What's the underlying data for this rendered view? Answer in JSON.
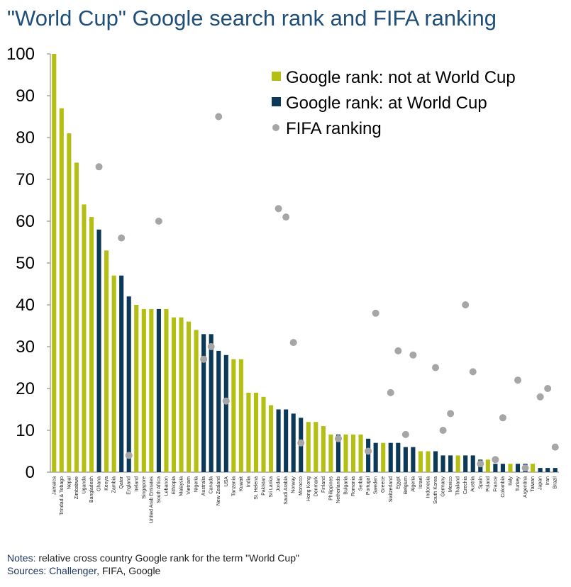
{
  "title": "\"World Cup\" Google search rank and FIFA ranking",
  "notes": {
    "notes_label": "Notes:",
    "notes_text": " relative cross country Google rank for the term \"World Cup\"",
    "sources_label": "Sources: Challenger",
    "sources_text": ", FIFA, Google"
  },
  "chart_data": {
    "type": "bar",
    "ylim": [
      0,
      100
    ],
    "yticks": [
      0,
      10,
      20,
      30,
      40,
      50,
      60,
      70,
      80,
      90,
      100
    ],
    "legend_position": "top-right",
    "grid": false,
    "colors": {
      "not_at_world_cup": "#b4bf14",
      "at_world_cup": "#0c3957",
      "fifa": "#a6a6a6"
    },
    "legend": [
      {
        "key": "not_at_world_cup",
        "label": "Google rank: not at World Cup",
        "marker": "square"
      },
      {
        "key": "at_world_cup",
        "label": "Google rank: at World Cup",
        "marker": "square"
      },
      {
        "key": "fifa",
        "label": "FIFA ranking",
        "marker": "circle"
      }
    ],
    "categories": [
      {
        "name": "Jamaica",
        "google": 100,
        "at_wc": false,
        "fifa": null
      },
      {
        "name": "Trindad & Tobago",
        "google": 87,
        "at_wc": false,
        "fifa": null
      },
      {
        "name": "Nepal",
        "google": 81,
        "at_wc": false,
        "fifa": null
      },
      {
        "name": "Zimbabwe",
        "google": 74,
        "at_wc": false,
        "fifa": null
      },
      {
        "name": "Uganda",
        "google": 64,
        "at_wc": false,
        "fifa": null
      },
      {
        "name": "Bangladesh",
        "google": 61,
        "at_wc": false,
        "fifa": null
      },
      {
        "name": "Ghana",
        "google": 58,
        "at_wc": true,
        "fifa": 73
      },
      {
        "name": "Kenya",
        "google": 53,
        "at_wc": false,
        "fifa": null
      },
      {
        "name": "Zambia",
        "google": 47,
        "at_wc": false,
        "fifa": null
      },
      {
        "name": "Qatar",
        "google": 47,
        "at_wc": true,
        "fifa": 56
      },
      {
        "name": "England",
        "google": 42,
        "at_wc": true,
        "fifa": 4
      },
      {
        "name": "Ireland",
        "google": 40,
        "at_wc": false,
        "fifa": null
      },
      {
        "name": "Singapore",
        "google": 39,
        "at_wc": false,
        "fifa": null
      },
      {
        "name": "United Arab Emirates",
        "google": 39,
        "at_wc": false,
        "fifa": null
      },
      {
        "name": "South Africa",
        "google": 39,
        "at_wc": true,
        "fifa": 60
      },
      {
        "name": "Lebanon",
        "google": 39,
        "at_wc": false,
        "fifa": null
      },
      {
        "name": "Ethiopia",
        "google": 37,
        "at_wc": false,
        "fifa": null
      },
      {
        "name": "Malaysia",
        "google": 37,
        "at_wc": false,
        "fifa": null
      },
      {
        "name": "Vietnam",
        "google": 36,
        "at_wc": false,
        "fifa": null
      },
      {
        "name": "Nigeria",
        "google": 34,
        "at_wc": false,
        "fifa": null
      },
      {
        "name": "Australia",
        "google": 33,
        "at_wc": true,
        "fifa": 27
      },
      {
        "name": "Canada",
        "google": 33,
        "at_wc": true,
        "fifa": 30
      },
      {
        "name": "New Zealand",
        "google": 29,
        "at_wc": true,
        "fifa": 85
      },
      {
        "name": "USA",
        "google": 28,
        "at_wc": true,
        "fifa": 17
      },
      {
        "name": "Tanzania",
        "google": 27,
        "at_wc": false,
        "fifa": null
      },
      {
        "name": "Kuwait",
        "google": 27,
        "at_wc": false,
        "fifa": null
      },
      {
        "name": "India",
        "google": 19,
        "at_wc": false,
        "fifa": null
      },
      {
        "name": "St. Helena",
        "google": 19,
        "at_wc": false,
        "fifa": null
      },
      {
        "name": "Pakistan",
        "google": 18,
        "at_wc": false,
        "fifa": null
      },
      {
        "name": "Sri Lanka",
        "google": 16,
        "at_wc": false,
        "fifa": null
      },
      {
        "name": "Jordan",
        "google": 15,
        "at_wc": true,
        "fifa": 63
      },
      {
        "name": "Saudi Arabia",
        "google": 15,
        "at_wc": true,
        "fifa": 61
      },
      {
        "name": "Norway",
        "google": 14,
        "at_wc": true,
        "fifa": 31
      },
      {
        "name": "Morocco",
        "google": 13,
        "at_wc": true,
        "fifa": 7
      },
      {
        "name": "Hong Kong",
        "google": 12,
        "at_wc": false,
        "fifa": null
      },
      {
        "name": "Denmark",
        "google": 12,
        "at_wc": false,
        "fifa": null
      },
      {
        "name": "Finland",
        "google": 11,
        "at_wc": false,
        "fifa": null
      },
      {
        "name": "Philippines",
        "google": 9,
        "at_wc": false,
        "fifa": null
      },
      {
        "name": "Netherlands",
        "google": 9,
        "at_wc": true,
        "fifa": 8
      },
      {
        "name": "Bulgaria",
        "google": 9,
        "at_wc": false,
        "fifa": null
      },
      {
        "name": "Romania",
        "google": 9,
        "at_wc": false,
        "fifa": null
      },
      {
        "name": "Serbia",
        "google": 9,
        "at_wc": false,
        "fifa": null
      },
      {
        "name": "Portugal",
        "google": 8,
        "at_wc": true,
        "fifa": 5
      },
      {
        "name": "Sweden",
        "google": 7,
        "at_wc": true,
        "fifa": 38
      },
      {
        "name": "Greece",
        "google": 7,
        "at_wc": false,
        "fifa": null
      },
      {
        "name": "Switzerland",
        "google": 7,
        "at_wc": true,
        "fifa": 19
      },
      {
        "name": "Egypt",
        "google": 7,
        "at_wc": true,
        "fifa": 29
      },
      {
        "name": "Belgium",
        "google": 6,
        "at_wc": true,
        "fifa": 9
      },
      {
        "name": "Algeria",
        "google": 6,
        "at_wc": true,
        "fifa": 28
      },
      {
        "name": "Israel",
        "google": 5,
        "at_wc": false,
        "fifa": null
      },
      {
        "name": "Indonesia",
        "google": 5,
        "at_wc": false,
        "fifa": null
      },
      {
        "name": "South Korea",
        "google": 5,
        "at_wc": true,
        "fifa": 25
      },
      {
        "name": "Germany",
        "google": 4,
        "at_wc": true,
        "fifa": 10
      },
      {
        "name": "Mexico",
        "google": 4,
        "at_wc": true,
        "fifa": 14
      },
      {
        "name": "Thailand",
        "google": 4,
        "at_wc": false,
        "fifa": null
      },
      {
        "name": "Czechia",
        "google": 4,
        "at_wc": true,
        "fifa": 40
      },
      {
        "name": "Austria",
        "google": 4,
        "at_wc": true,
        "fifa": 24
      },
      {
        "name": "Spain",
        "google": 3,
        "at_wc": true,
        "fifa": 2
      },
      {
        "name": "Poland",
        "google": 3,
        "at_wc": false,
        "fifa": null
      },
      {
        "name": "France",
        "google": 2,
        "at_wc": true,
        "fifa": 3
      },
      {
        "name": "Colombia",
        "google": 2,
        "at_wc": true,
        "fifa": 13
      },
      {
        "name": "Italy",
        "google": 2,
        "at_wc": false,
        "fifa": null
      },
      {
        "name": "Turkey",
        "google": 2,
        "at_wc": true,
        "fifa": 22
      },
      {
        "name": "Argentina",
        "google": 2,
        "at_wc": true,
        "fifa": 1
      },
      {
        "name": "Taiwan",
        "google": 2,
        "at_wc": false,
        "fifa": null
      },
      {
        "name": "Japan",
        "google": 1,
        "at_wc": true,
        "fifa": 18
      },
      {
        "name": "Iran",
        "google": 1,
        "at_wc": true,
        "fifa": 20
      },
      {
        "name": "Brazil",
        "google": 1,
        "at_wc": true,
        "fifa": 6
      }
    ]
  }
}
